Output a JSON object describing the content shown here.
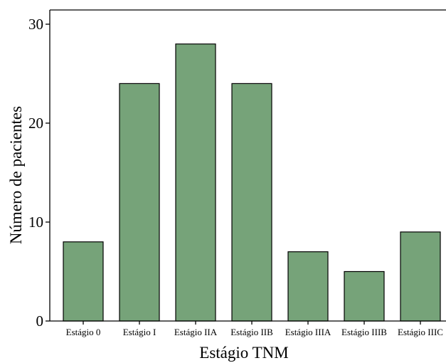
{
  "chart_data": {
    "type": "bar",
    "title": "",
    "xlabel": "Estágio TNM",
    "ylabel": "Número de pacientes",
    "categories": [
      "Estágio 0",
      "Estágio I",
      "Estágio IIA",
      "Estágio IIB",
      "Estágio IIIA",
      "Estágio IIIB",
      "Estágio IIIC"
    ],
    "values": [
      8,
      24,
      28,
      24,
      7,
      5,
      9
    ],
    "ylim": [
      0,
      30
    ],
    "yticks": [
      0,
      10,
      20,
      30
    ],
    "grid": false,
    "legend": "none",
    "bar_color": "#76A379",
    "edge_color": "#000000"
  }
}
